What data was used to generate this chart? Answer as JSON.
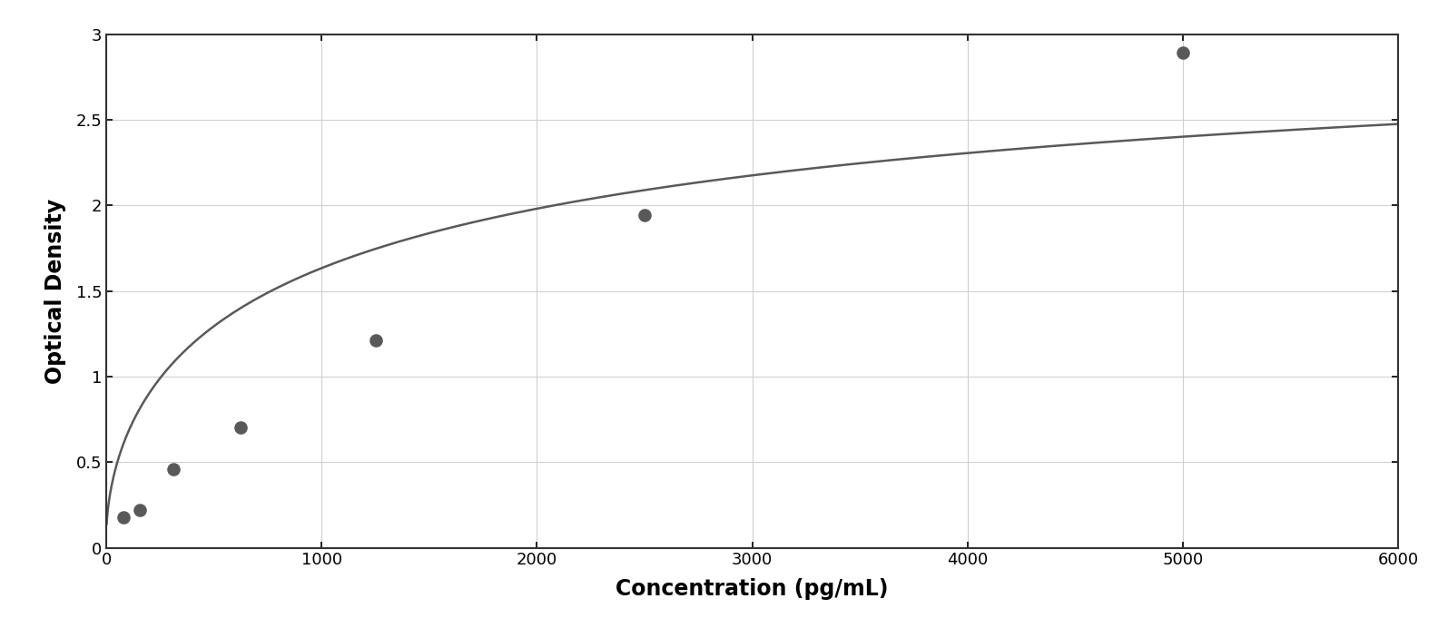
{
  "x_data": [
    78,
    156,
    313,
    625,
    1250,
    2500,
    5000
  ],
  "y_data": [
    0.18,
    0.22,
    0.46,
    0.7,
    1.21,
    1.94,
    2.89
  ],
  "xlabel": "Concentration (pg/mL)",
  "ylabel": "Optical Density",
  "xlim": [
    0,
    6000
  ],
  "ylim": [
    0,
    3.0
  ],
  "xticks": [
    0,
    1000,
    2000,
    3000,
    4000,
    5000,
    6000
  ],
  "ytick_values": [
    0,
    0.5,
    1.0,
    1.5,
    2.0,
    2.5,
    3.0
  ],
  "ytick_labels": [
    "0",
    "0.5",
    "1",
    "1.5",
    "2",
    "2.5",
    "3"
  ],
  "dot_color": "#595959",
  "line_color": "#595959",
  "background_color": "#ffffff",
  "plot_bg_color": "#ffffff",
  "grid_color": "#d0d0d0",
  "border_color": "#333333",
  "outer_border_color": "#999999",
  "xlabel_fontsize": 17,
  "ylabel_fontsize": 17,
  "tick_fontsize": 13,
  "dot_size": 90,
  "line_width": 1.8,
  "4pl_A": 0.1,
  "4pl_B": 0.62,
  "4pl_C": 1200,
  "4pl_D": 3.35
}
